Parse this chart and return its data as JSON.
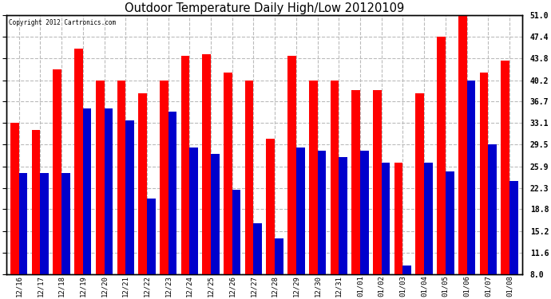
{
  "title": "Outdoor Temperature Daily High/Low 20120109",
  "copyright": "Copyright 2012 Cartronics.com",
  "categories": [
    "12/16",
    "12/17",
    "12/18",
    "12/19",
    "12/20",
    "12/21",
    "12/22",
    "12/23",
    "12/24",
    "12/25",
    "12/26",
    "12/27",
    "12/28",
    "12/29",
    "12/30",
    "12/31",
    "01/01",
    "01/02",
    "01/03",
    "01/04",
    "01/05",
    "01/06",
    "01/07",
    "01/08"
  ],
  "highs": [
    33.1,
    32.0,
    42.0,
    45.5,
    40.2,
    40.2,
    38.0,
    40.2,
    44.2,
    44.5,
    41.5,
    40.2,
    30.5,
    44.2,
    40.2,
    40.2,
    38.5,
    38.5,
    26.5,
    38.0,
    47.4,
    51.0,
    41.5,
    43.5
  ],
  "lows": [
    24.8,
    24.8,
    24.8,
    35.5,
    35.5,
    33.5,
    20.5,
    35.0,
    29.0,
    28.0,
    22.0,
    16.5,
    14.0,
    29.0,
    28.5,
    27.5,
    28.5,
    26.5,
    9.5,
    26.5,
    25.0,
    40.2,
    29.5,
    23.5
  ],
  "high_color": "#ff0000",
  "low_color": "#0000cc",
  "bg_color": "#ffffff",
  "plot_bg_color": "#ffffff",
  "grid_color": "#bbbbbb",
  "ymin": 8.0,
  "ymax": 51.0,
  "yticks": [
    8.0,
    11.6,
    15.2,
    18.8,
    22.3,
    25.9,
    29.5,
    33.1,
    36.7,
    40.2,
    43.8,
    47.4,
    51.0
  ]
}
